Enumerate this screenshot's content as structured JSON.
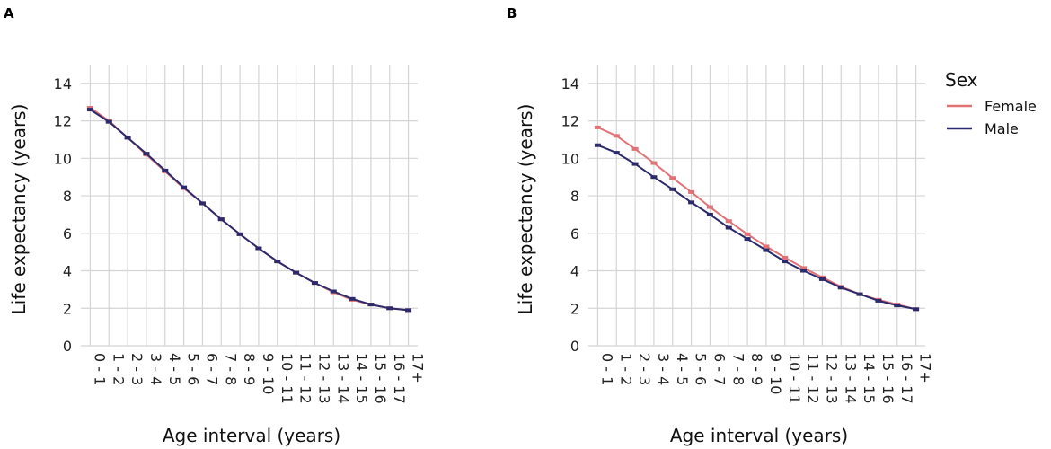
{
  "colors": {
    "female": "#e07276",
    "male": "#2c2a6b",
    "grid": "#d4d4d4"
  },
  "legend": {
    "title": "Sex",
    "entries": [
      {
        "label": "Female",
        "color": "#e07276"
      },
      {
        "label": "Male",
        "color": "#2c2a6b"
      }
    ]
  },
  "chart_data": [
    {
      "panel": "A",
      "type": "line",
      "xlabel": "Age interval (years)",
      "ylabel": "Life expectancy (years)",
      "ylim": [
        0,
        15
      ],
      "yticks": [
        0,
        2,
        4,
        6,
        8,
        10,
        12,
        14
      ],
      "categories": [
        "0 - 1",
        "1 - 2",
        "2 - 3",
        "3 - 4",
        "4 - 5",
        "5 - 6",
        "6 - 7",
        "7 - 8",
        "8 - 9",
        "9 - 10",
        "10 - 11",
        "11 - 12",
        "12 - 13",
        "13 - 14",
        "14 - 15",
        "15 - 16",
        "16 - 17",
        "17+"
      ],
      "series": [
        {
          "name": "Female",
          "values": [
            12.7,
            12.0,
            11.1,
            10.2,
            9.3,
            8.4,
            7.6,
            6.75,
            5.95,
            5.2,
            4.5,
            3.9,
            3.35,
            2.85,
            2.45,
            2.2,
            2.0,
            1.9
          ]
        },
        {
          "name": "Male",
          "values": [
            12.6,
            11.95,
            11.1,
            10.25,
            9.35,
            8.45,
            7.6,
            6.75,
            5.95,
            5.2,
            4.5,
            3.9,
            3.35,
            2.9,
            2.5,
            2.2,
            2.0,
            1.9
          ]
        }
      ]
    },
    {
      "panel": "B",
      "type": "line",
      "xlabel": "Age interval (years)",
      "ylabel": "Life expectancy (years)",
      "ylim": [
        0,
        15
      ],
      "yticks": [
        0,
        2,
        4,
        6,
        8,
        10,
        12,
        14
      ],
      "categories": [
        "0 - 1",
        "1 - 2",
        "2 - 3",
        "3 - 4",
        "4 - 5",
        "5 - 6",
        "6 - 7",
        "7 - 8",
        "8 - 9",
        "9 - 10",
        "10 - 11",
        "11 - 12",
        "12 - 13",
        "13 - 14",
        "14 - 15",
        "15 - 16",
        "16 - 17",
        "17+"
      ],
      "series": [
        {
          "name": "Female",
          "values": [
            11.65,
            11.2,
            10.5,
            9.75,
            8.95,
            8.2,
            7.4,
            6.65,
            5.95,
            5.3,
            4.7,
            4.15,
            3.65,
            3.15,
            2.75,
            2.45,
            2.2,
            1.95
          ]
        },
        {
          "name": "Male",
          "values": [
            10.7,
            10.3,
            9.7,
            9.0,
            8.35,
            7.65,
            7.0,
            6.3,
            5.7,
            5.1,
            4.5,
            4.0,
            3.55,
            3.1,
            2.75,
            2.4,
            2.15,
            1.95
          ]
        }
      ]
    }
  ]
}
